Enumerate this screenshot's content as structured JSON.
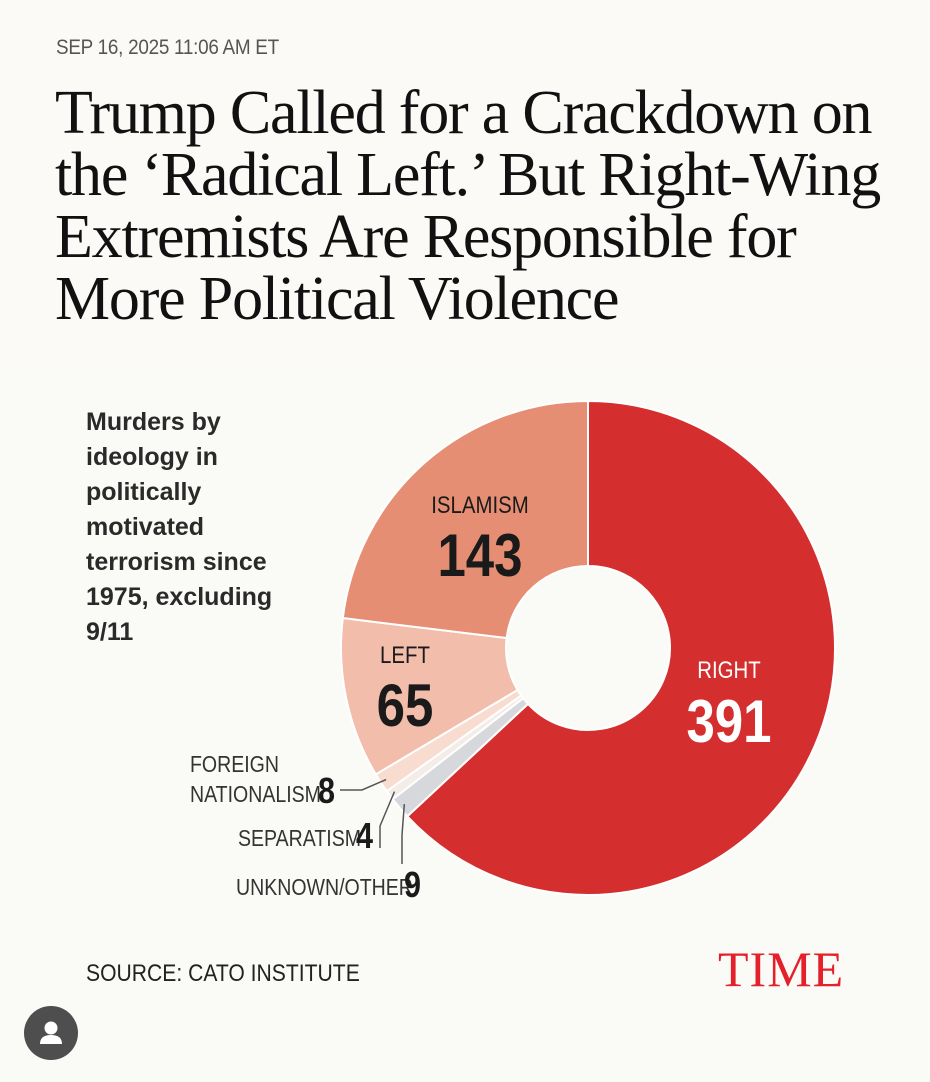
{
  "dateline": "SEP 16, 2025 11:06 AM ET",
  "headline": "Trump Called for a Crackdown on the ‘Radical Left.’ But Right-Wing Extremists Are Responsible for More Political Violence",
  "source": "SOURCE: CATO INSTITUTE",
  "logo_text": "TIME",
  "colors": {
    "right": "#d42f2e",
    "islamism": "#e58e73",
    "left": "#f2bdaa",
    "foreign_nationalism": "#f8dccf",
    "separatism": "#f3ece7",
    "unknown_other": "#d7d8dc",
    "brand": "#e4202a"
  },
  "chart_data": {
    "type": "pie",
    "donut": true,
    "title": "Murders by ideology in politically motivated terrorism since 1975, excluding 9/11",
    "slices": [
      {
        "label": "RIGHT",
        "value": 391
      },
      {
        "label": "UNKNOWN/OTHER",
        "value": 9
      },
      {
        "label": "SEPARATISM",
        "value": 4
      },
      {
        "label": "FOREIGN NATIONALISM",
        "value": 8
      },
      {
        "label": "LEFT",
        "value": 65
      },
      {
        "label": "ISLAMISM",
        "value": 143
      }
    ]
  }
}
